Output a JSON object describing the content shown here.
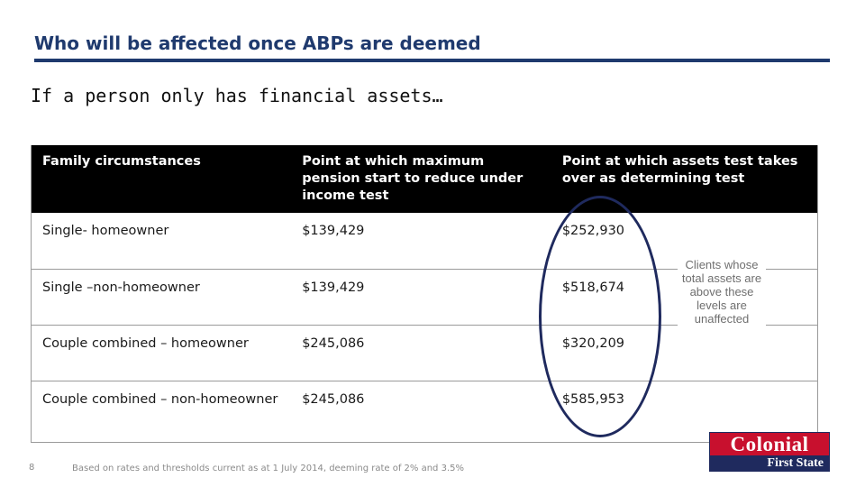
{
  "slide": {
    "title": "Who will be affected once ABPs are deemed",
    "subtitle": "If a person only has financial assets…",
    "page_number": "8",
    "footnote": "Based on rates and thresholds current as at 1 July 2014, deeming rate of 2% and 3.5%",
    "callout": "Clients whose total assets are above these levels are unaffected",
    "accent_color": "#1f3a6e"
  },
  "table": {
    "headers": [
      "Family circumstances",
      "Point at which maximum pension start to reduce under income test",
      "Point at which assets test takes over as determining test"
    ],
    "rows": [
      [
        "Single- homeowner",
        "$139,429",
        "$252,930"
      ],
      [
        "Single –non-homeowner",
        "$139,429",
        "$518,674"
      ],
      [
        "Couple combined – homeowner",
        "$245,086",
        "$320,209"
      ],
      [
        "Couple combined – non-homeowner",
        "$245,086",
        "$585,953"
      ]
    ]
  },
  "logo": {
    "line1": "Colonial",
    "line2": "First State",
    "brand_red": "#c8102e",
    "brand_navy": "#1f2a5e"
  }
}
